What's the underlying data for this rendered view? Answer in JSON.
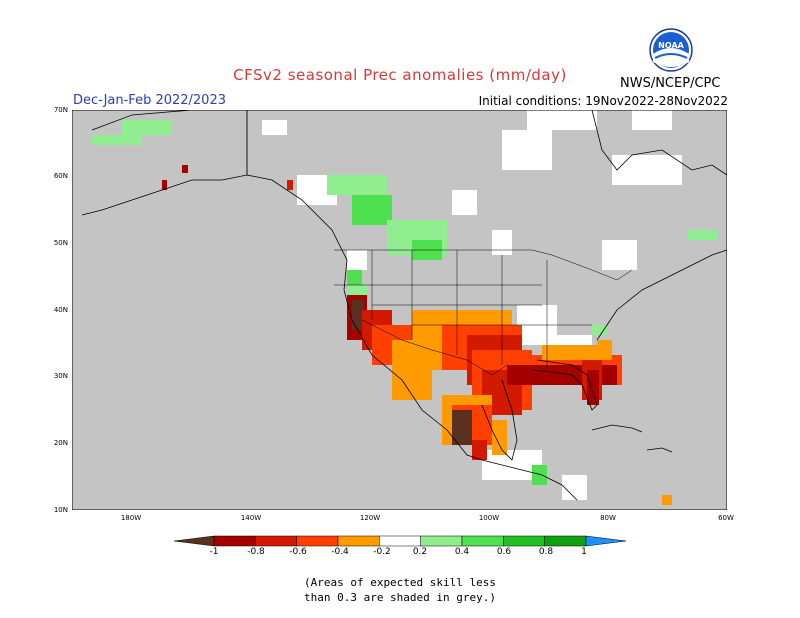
{
  "header": {
    "title": "CFSv2 seasonal Prec anomalies (mm/day)",
    "season": "Dec-Jan-Feb 2022/2023",
    "initial_conditions": "Initial conditions: 19Nov2022-28Nov2022",
    "agency": "NWS/NCEP/CPC",
    "logo_text": "NOAA"
  },
  "map": {
    "lat_labels": [
      "70N",
      "60N",
      "50N",
      "40N",
      "30N",
      "20N",
      "10N"
    ],
    "lon_labels": [
      "180W",
      "140W",
      "120W",
      "100W",
      "80W",
      "60W"
    ],
    "background_color": "#c4c4c4",
    "regions": [
      {
        "name": "alaska-north-slope",
        "anomaly": "wet-light"
      },
      {
        "name": "alaska-south-coast",
        "anomaly": "dry-strong"
      },
      {
        "name": "british-columbia-alberta",
        "anomaly": "wet-moderate"
      },
      {
        "name": "pacific-northwest",
        "anomaly": "wet-moderate"
      },
      {
        "name": "california-coast",
        "anomaly": "dry-extreme"
      },
      {
        "name": "southwest-us",
        "anomaly": "dry-moderate"
      },
      {
        "name": "southern-plains",
        "anomaly": "dry-strong"
      },
      {
        "name": "gulf-coast",
        "anomaly": "dry-extreme"
      },
      {
        "name": "florida",
        "anomaly": "dry-extreme"
      },
      {
        "name": "mexico-pacific",
        "anomaly": "dry-extreme"
      },
      {
        "name": "central-america",
        "anomaly": "wet-moderate"
      }
    ]
  },
  "colorbar": {
    "labels": [
      "-1",
      "-0.8",
      "-0.6",
      "-0.4",
      "-0.2",
      "0.2",
      "0.4",
      "0.6",
      "0.8",
      "1"
    ],
    "colors": [
      "#5a3020",
      "#a50000",
      "#d21a00",
      "#ff4000",
      "#ff9a00",
      "#ffffff",
      "#90ee90",
      "#4ee04e",
      "#22c022",
      "#10a010",
      "#1e90ff"
    ]
  },
  "footnote": {
    "line1": "(Areas of expected skill less",
    "line2": "than 0.3 are shaded in grey.)"
  }
}
